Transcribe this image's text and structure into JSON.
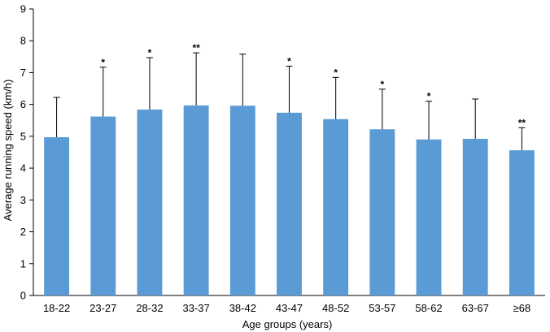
{
  "chart_data": {
    "type": "bar",
    "title": "",
    "xlabel": "Age groups (years)",
    "ylabel": "Average running speed (km/h)",
    "ylim": [
      0,
      9
    ],
    "yticks": [
      0,
      1,
      2,
      3,
      4,
      5,
      6,
      7,
      8,
      9
    ],
    "categories": [
      "18-22",
      "23-27",
      "28-32",
      "33-37",
      "38-42",
      "43-47",
      "48-52",
      "53-57",
      "58-62",
      "63-67",
      "≥68"
    ],
    "values": [
      4.97,
      5.62,
      5.84,
      5.97,
      5.96,
      5.74,
      5.54,
      5.22,
      4.9,
      4.92,
      4.56
    ],
    "error_upper": [
      6.22,
      7.17,
      7.47,
      7.62,
      7.58,
      7.2,
      6.85,
      6.48,
      6.1,
      6.17,
      5.27
    ],
    "significance": [
      "",
      "*",
      "*",
      "**",
      "",
      "*",
      "*",
      "*",
      "*",
      "",
      "**"
    ],
    "bar_color": "#5b9bd5",
    "grid": false,
    "legend": "none"
  }
}
